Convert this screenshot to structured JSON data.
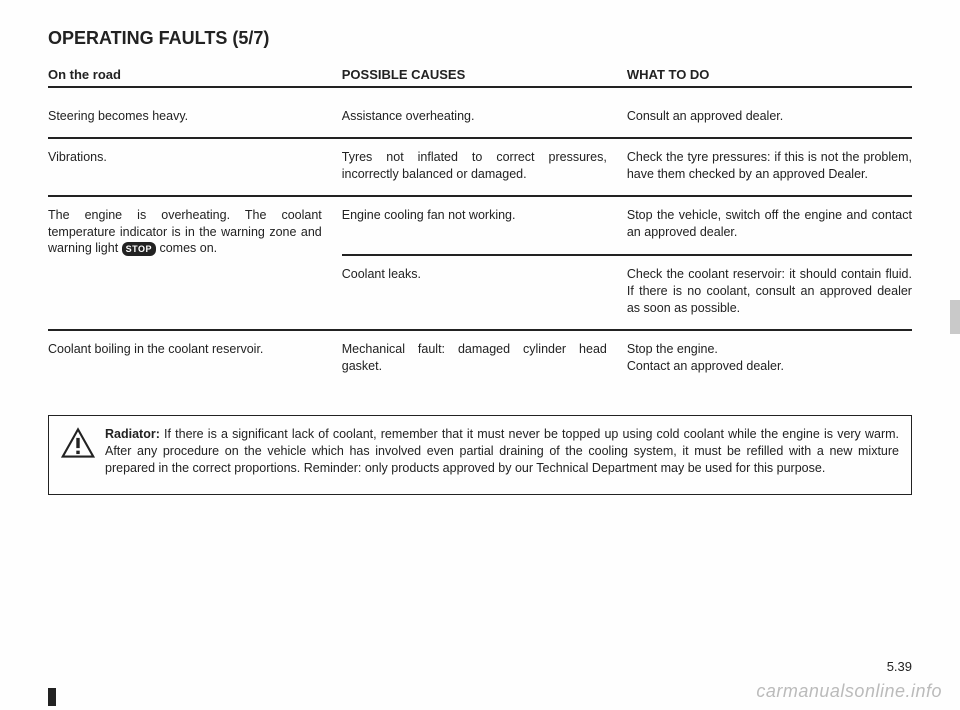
{
  "header": {
    "title": "OPERATING FAULTS",
    "subtitle": "(5/7)"
  },
  "columns": {
    "c1": "On the road",
    "c2": "POSSIBLE CAUSES",
    "c3": "WHAT TO DO"
  },
  "rows": [
    {
      "c1": "Steering becomes heavy.",
      "c2": "Assistance overheating.",
      "c3": "Consult an approved dealer."
    },
    {
      "c1": "Vibrations.",
      "c2": "Tyres not inflated to correct pressures, incorrectly balanced or damaged.",
      "c3": "Check the tyre pressures: if this is not the problem, have them checked by an approved Dealer."
    },
    {
      "c1_pre": "The engine is overheating. The coolant temperature indicator is in the warning zone and warning light ",
      "c1_post": " comes on.",
      "stop": "STOP",
      "c2": "Engine cooling fan not working.",
      "c3": "Stop the vehicle, switch off the engine and contact an approved dealer.",
      "sub": {
        "c2": "Coolant leaks.",
        "c3": "Check the coolant reservoir: it should contain fluid. If there is no coolant, consult an approved dealer as soon as possible."
      }
    },
    {
      "c1": "Coolant boiling in the coolant reservoir.",
      "c2": "Mechanical fault: damaged cylinder head gasket.",
      "c3": "Stop the engine.\nContact an approved dealer."
    }
  ],
  "note": {
    "label": "Radiator:",
    "text": " If there is a significant lack of coolant, remember that it must never be topped up using cold coolant while the engine is very warm. After any procedure on the vehicle which has involved even partial draining of the cooling system, it must be refilled with a new mixture prepared in the correct proportions. Reminder: only products approved by our Technical Department may be used for this purpose."
  },
  "pagenum": "5.39",
  "watermark": "carmanualsonline.info"
}
